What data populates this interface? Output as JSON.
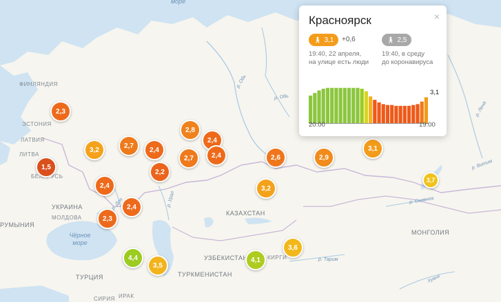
{
  "labels": {
    "countries": [
      {
        "id": "finland",
        "text": "ФИНЛЯНДИЯ"
      },
      {
        "id": "estonia",
        "text": "ЭСТОНИЯ"
      },
      {
        "id": "latvia",
        "text": "ЛАТВИЯ"
      },
      {
        "id": "lithuania",
        "text": "ЛИТВА"
      },
      {
        "id": "belarus",
        "text": "БЕЛАРУСЬ"
      },
      {
        "id": "ukraine",
        "text": "УКРАИНА"
      },
      {
        "id": "moldova",
        "text": "МОЛДОВА"
      },
      {
        "id": "romania",
        "text": "РУМЫНИЯ"
      },
      {
        "id": "kazakhstan",
        "text": "КАЗАХСТАН"
      },
      {
        "id": "uzbekistan",
        "text": "УЗБЕКИСТАН"
      },
      {
        "id": "kyrgyzstan",
        "text": "КИРГИ"
      },
      {
        "id": "turkmenistan",
        "text": "ТУРКМЕНИСТАН"
      },
      {
        "id": "turkey",
        "text": "ТУРЦИЯ"
      },
      {
        "id": "mongolia",
        "text": "МОНГОЛИЯ"
      },
      {
        "id": "syria",
        "text": "СИРИЯ"
      },
      {
        "id": "iraq",
        "text": "ИРАК"
      }
    ],
    "seas": [
      {
        "id": "black-sea",
        "text": "Чёрное море"
      },
      {
        "id": "top-sea",
        "text": "море"
      }
    ],
    "rivers": [
      {
        "id": "ob",
        "text": "р. Обь"
      },
      {
        "id": "ob2",
        "text": "р. Обь"
      },
      {
        "id": "lena",
        "text": "р. Лена"
      },
      {
        "id": "vitim",
        "text": "р. Витим"
      },
      {
        "id": "don",
        "text": "р. Дон"
      },
      {
        "id": "ural",
        "text": "р. Урал"
      },
      {
        "id": "selenga",
        "text": "р. Селенга"
      },
      {
        "id": "tarim",
        "text": "р. Тарим"
      },
      {
        "id": "huang",
        "text": "Хуанх"
      }
    ]
  },
  "markers": [
    {
      "id": "m1",
      "value": "2,3",
      "color": "#ee6a1b"
    },
    {
      "id": "m2",
      "value": "1,5",
      "color": "#d9501c"
    },
    {
      "id": "m3",
      "value": "3,2",
      "color": "#f4a21b"
    },
    {
      "id": "m4",
      "value": "2,7",
      "color": "#ef7a1c"
    },
    {
      "id": "m5",
      "value": "2,4",
      "color": "#ee6a1b"
    },
    {
      "id": "m6",
      "value": "2,8",
      "color": "#f0821d"
    },
    {
      "id": "m7",
      "value": "2,4",
      "color": "#ee6a1b"
    },
    {
      "id": "m8",
      "value": "2,4",
      "color": "#ee6a1b"
    },
    {
      "id": "m9",
      "value": "2,7",
      "color": "#ef7a1c"
    },
    {
      "id": "m10",
      "value": "2,2",
      "color": "#ec641b"
    },
    {
      "id": "m11",
      "value": "2,4",
      "color": "#ee6a1b"
    },
    {
      "id": "m12",
      "value": "2,4",
      "color": "#ee6a1b"
    },
    {
      "id": "m13",
      "value": "2,3",
      "color": "#ee6a1b"
    },
    {
      "id": "m14",
      "value": "2,6",
      "color": "#ef761c"
    },
    {
      "id": "m15",
      "value": "2,9",
      "color": "#f18b1c"
    },
    {
      "id": "m16",
      "value": "3,2",
      "color": "#f4a21b"
    },
    {
      "id": "m17",
      "value": "3,1",
      "color": "#f39c1b"
    },
    {
      "id": "m18",
      "value": "3,7",
      "color": "#f0c31b"
    },
    {
      "id": "m19",
      "value": "4,4",
      "color": "#9ccb21"
    },
    {
      "id": "m20",
      "value": "3,5",
      "color": "#f2b31b"
    },
    {
      "id": "m21",
      "value": "4,1",
      "color": "#aecc1f"
    },
    {
      "id": "m22",
      "value": "3,6",
      "color": "#f2b81b"
    }
  ],
  "popup": {
    "city": "Красноярск",
    "close_symbol": "×",
    "current_index": "3,1",
    "current_color": "#f39c1b",
    "delta": "+0,6",
    "pre_covid_index": "2,5",
    "pre_covid_color": "#a8a8a8",
    "current_desc_line1": "19:40, 22 апреля,",
    "current_desc_line2": "на улице есть люди",
    "pre_covid_desc_line1": "19:40, в среду",
    "pre_covid_desc_line2": "до коронавируса",
    "person_icon": "person-icon",
    "chart_data": {
      "type": "bar",
      "x_start_label": "20:00",
      "x_end_label": "19:00",
      "last_value_label": "3,1",
      "values": [
        3.3,
        3.6,
        3.9,
        4.1,
        4.2,
        4.2,
        4.2,
        4.2,
        4.2,
        4.2,
        4.2,
        4.2,
        4.1,
        3.8,
        3.2,
        2.8,
        2.5,
        2.3,
        2.2,
        2.2,
        2.1,
        2.1,
        2.1,
        2.1,
        2.2,
        2.3,
        2.6,
        3.1
      ],
      "colors": [
        "#8cc63f",
        "#8cc63f",
        "#8cc63f",
        "#8cc63f",
        "#8cc63f",
        "#8cc63f",
        "#8cc63f",
        "#8cc63f",
        "#8cc63f",
        "#8cc63f",
        "#8cc63f",
        "#8cc63f",
        "#9ccb21",
        "#d8d420",
        "#f2b31b",
        "#ee5a1a",
        "#ee5a1a",
        "#ee5a1a",
        "#ee5a1a",
        "#ee5a1a",
        "#ee5a1a",
        "#ee5a1a",
        "#ee5a1a",
        "#ee5a1a",
        "#ee5a1a",
        "#ee5a1a",
        "#ee7a1c",
        "#f39c1b"
      ],
      "ylim": [
        0,
        4.5
      ]
    }
  }
}
